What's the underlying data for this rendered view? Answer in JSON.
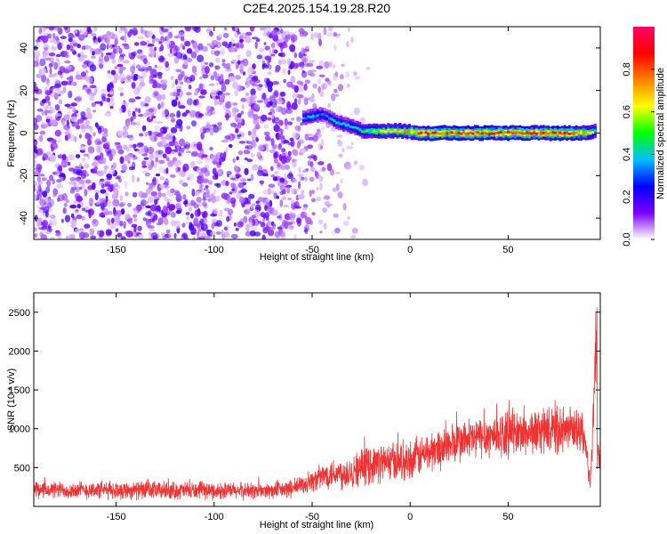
{
  "title": "C2E4.2025.154.19.28.R20",
  "chart_data": [
    {
      "type": "heatmap",
      "xlabel": "Height of straight line (km)",
      "ylabel": "Frequency (Hz)",
      "xlim": [
        -192,
        97
      ],
      "ylim": [
        -50,
        50
      ],
      "x_ticks": [
        -150,
        -100,
        -50,
        0,
        50
      ],
      "x_tick_labels": [
        "-150",
        "-100",
        "-50",
        "0",
        "50"
      ],
      "y_ticks": [
        -40,
        -20,
        0,
        20,
        40
      ],
      "y_tick_labels": [
        "-40",
        "-20",
        "0",
        "20",
        "40"
      ],
      "colorbar": {
        "label": "Normalized spectral amplitude",
        "range": [
          0,
          1
        ],
        "ticks": [
          0.0,
          0.2,
          0.4,
          0.6,
          0.8
        ],
        "tick_labels": [
          "0.0",
          "0.2",
          "0.4",
          "0.6",
          "0.8"
        ],
        "colors": [
          "#ffffff",
          "#7b00ff",
          "#0000ff",
          "#00bfff",
          "#00ff00",
          "#ffff00",
          "#ff8000",
          "#ff0000",
          "#ff0066"
        ]
      },
      "noise_region_x": [
        -192,
        -25
      ],
      "noise_amplitude_range": [
        0.0,
        0.15
      ],
      "tone_track": [
        {
          "x": -55,
          "freq": 7,
          "amp": 0.35
        },
        {
          "x": -50,
          "freq": 8,
          "amp": 0.4
        },
        {
          "x": -45,
          "freq": 9,
          "amp": 0.3
        },
        {
          "x": -38,
          "freq": 5,
          "amp": 0.4
        },
        {
          "x": -30,
          "freq": 3,
          "amp": 0.4
        },
        {
          "x": -25,
          "freq": 1,
          "amp": 0.45
        },
        {
          "x": -15,
          "freq": 1,
          "amp": 0.6
        },
        {
          "x": -5,
          "freq": 1,
          "amp": 0.65
        },
        {
          "x": 5,
          "freq": 0,
          "amp": 0.8
        },
        {
          "x": 20,
          "freq": 0,
          "amp": 0.85
        },
        {
          "x": 40,
          "freq": 0,
          "amp": 0.85
        },
        {
          "x": 60,
          "freq": 0,
          "amp": 0.85
        },
        {
          "x": 80,
          "freq": 0,
          "amp": 0.85
        },
        {
          "x": 90,
          "freq": 0,
          "amp": 0.7
        },
        {
          "x": 95,
          "freq": 1,
          "amp": 0.4
        }
      ],
      "grid": false
    },
    {
      "type": "line",
      "xlabel": "Height of straight line (km)",
      "ylabel": "SNR (10 * v/v)",
      "xlim": [
        -192,
        97
      ],
      "ylim": [
        0,
        2750
      ],
      "x_ticks": [
        -150,
        -100,
        -50,
        0,
        50
      ],
      "x_tick_labels": [
        "-150",
        "-100",
        "-50",
        "0",
        "50"
      ],
      "y_ticks": [
        500,
        1000,
        1500,
        2000,
        2500
      ],
      "y_tick_labels": [
        "500",
        "1000",
        "1500",
        "2000",
        "2500"
      ],
      "series": [
        {
          "color": "#f03232",
          "x": [
            -192,
            -150,
            -100,
            -70,
            -60,
            -50,
            -45,
            -40,
            -35,
            -30,
            -25,
            -20,
            -10,
            0,
            10,
            20,
            30,
            40,
            50,
            60,
            70,
            80,
            88,
            92,
            94,
            95,
            96,
            97
          ],
          "y": [
            210,
            210,
            200,
            200,
            230,
            330,
            380,
            440,
            420,
            460,
            500,
            540,
            580,
            600,
            700,
            790,
            860,
            910,
            930,
            950,
            980,
            980,
            970,
            300,
            1500,
            1200,
            650,
            600
          ],
          "noise_amplitude": [
            130,
            140,
            130,
            130,
            140,
            170,
            200,
            230,
            250,
            270,
            280,
            290,
            300,
            300,
            310,
            320,
            330,
            330,
            340,
            340,
            350,
            340,
            320,
            200,
            400,
            1200,
            200,
            150
          ]
        }
      ],
      "grid": false
    }
  ]
}
